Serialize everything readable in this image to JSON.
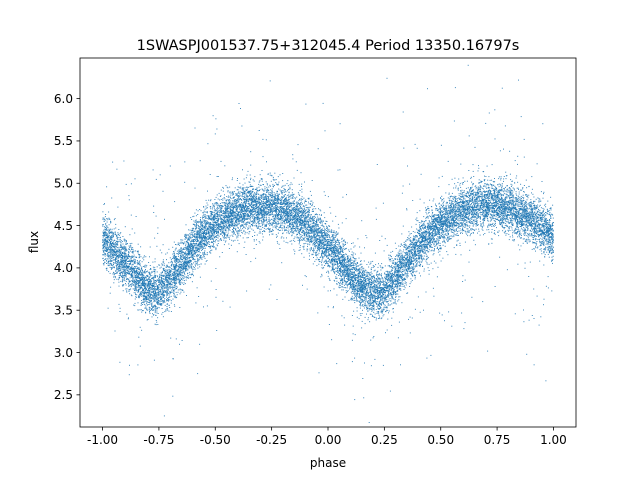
{
  "chart_data": {
    "type": "scatter",
    "title": "1SWASPJ001537.75+312045.4 Period 13350.16797s",
    "xlabel": "phase",
    "ylabel": "flux",
    "xlim": [
      -1.1,
      1.1
    ],
    "ylim": [
      2.12,
      6.48
    ],
    "xticks": [
      "-1.00",
      "-0.75",
      "-0.50",
      "-0.25",
      "0.00",
      "0.25",
      "0.50",
      "0.75",
      "1.00"
    ],
    "yticks": [
      "2.5",
      "3.0",
      "3.5",
      "4.0",
      "4.5",
      "5.0",
      "5.5",
      "6.0"
    ],
    "grid": false,
    "point_color": "#1f77b4",
    "series": [
      {
        "phase_range": [
          -1.0,
          1.0
        ],
        "approx_points": 16000,
        "scatter_sd": 0.14,
        "curve": {
          "x": [
            -1.0,
            -0.95,
            -0.9,
            -0.85,
            -0.8,
            -0.75,
            -0.7,
            -0.65,
            -0.6,
            -0.55,
            -0.5,
            -0.45,
            -0.4,
            -0.35,
            -0.3,
            -0.25,
            -0.2,
            -0.15,
            -0.1,
            -0.05,
            0.0,
            0.05,
            0.1,
            0.15,
            0.2,
            0.25,
            0.3,
            0.35,
            0.4,
            0.45,
            0.5,
            0.55,
            0.6,
            0.65,
            0.7,
            0.75,
            0.8,
            0.85,
            0.9,
            0.95,
            1.0
          ],
          "y": [
            4.35,
            4.2,
            4.05,
            3.9,
            3.75,
            3.72,
            3.85,
            4.05,
            4.25,
            4.4,
            4.52,
            4.6,
            4.67,
            4.71,
            4.73,
            4.72,
            4.68,
            4.62,
            4.52,
            4.4,
            4.25,
            4.08,
            3.92,
            3.77,
            3.7,
            3.72,
            3.88,
            4.08,
            4.25,
            4.4,
            4.52,
            4.6,
            4.67,
            4.72,
            4.75,
            4.75,
            4.72,
            4.65,
            4.57,
            4.47,
            4.37
          ]
        }
      }
    ]
  }
}
